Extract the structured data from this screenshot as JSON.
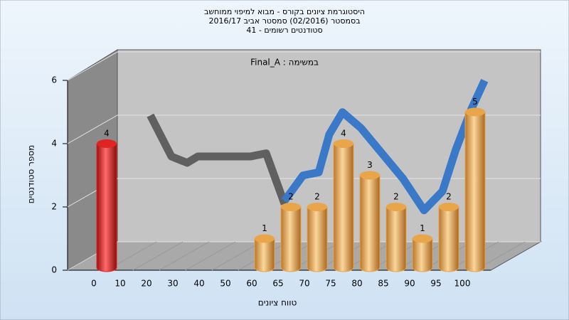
{
  "chart_data": {
    "type": "bar",
    "title": [
      "היסטוגרמת ציונים בקורס - מבוא למיפוי ממוחשב",
      "בסמסטר  (02/2016)  סמסטר אביב 2016/17",
      "סטודנטים רשומים - 41"
    ],
    "annotation": "Final_A : במשימה",
    "x_label": "טווח ציונים",
    "y_label": "מספר סטודנטים",
    "categories": [
      "0",
      "10",
      "20",
      "30",
      "40",
      "50",
      "60",
      "65",
      "70",
      "75",
      "80",
      "85",
      "90",
      "95",
      "100"
    ],
    "values": [
      4,
      0,
      0,
      0,
      0,
      0,
      1,
      2,
      2,
      4,
      3,
      2,
      1,
      2,
      5
    ],
    "color": "#e8a54a",
    "highlight": {
      "index": 0,
      "color": "#e02424"
    },
    "ylim": [
      0,
      6
    ],
    "yticks": [
      0,
      2,
      4,
      6
    ],
    "grid": true,
    "lines": [
      {
        "color": "#606060",
        "x": [
          1.2,
          2,
          2.6,
          3,
          4,
          5,
          5.6,
          6.3
        ],
        "values": [
          4.4,
          3.1,
          2.9,
          3.1,
          3.1,
          3.1,
          3.2,
          1.6
        ]
      },
      {
        "color": "#3a78c8",
        "x": [
          6.3,
          7,
          7.6,
          8,
          8.5,
          9.2,
          10,
          10.8,
          11.6,
          12.3,
          12.8,
          13.4,
          13.9
        ],
        "values": [
          1.7,
          2.5,
          2.6,
          3.8,
          4.5,
          4.0,
          3.2,
          2.4,
          1.4,
          2.0,
          3.3,
          4.6,
          5.5
        ]
      }
    ]
  }
}
